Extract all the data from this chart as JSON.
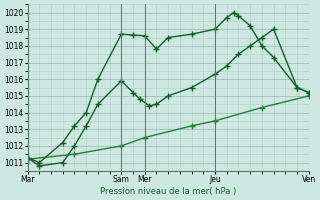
{
  "xlabel": "Pression niveau de la mer( hPa )",
  "background_color": "#cce8e0",
  "grid_color": "#b0cec8",
  "grid_color_major": "#99b8b0",
  "line_color_dark": "#1a5c30",
  "line_color_mid": "#2d7a40",
  "ylim": [
    1010.5,
    1020.5
  ],
  "yticks": [
    1011,
    1012,
    1013,
    1014,
    1015,
    1016,
    1017,
    1018,
    1019,
    1020
  ],
  "xtick_labels": [
    "Mar",
    "",
    "Sam",
    "Mer",
    "",
    "Jeu",
    "",
    "Ven"
  ],
  "xtick_positions": [
    0,
    2,
    4,
    5,
    7,
    8,
    10,
    12
  ],
  "day_lines": [
    0,
    4,
    5,
    8,
    12
  ],
  "line1_x": [
    0,
    0.5,
    1.5,
    2.0,
    2.5,
    3.0,
    4.0,
    4.5,
    4.8,
    5.2,
    5.5,
    6.0,
    7.0,
    8.0,
    8.5,
    9.0,
    9.5,
    10.0,
    10.5,
    11.5,
    12.0
  ],
  "line1_y": [
    1011.3,
    1010.8,
    1011.0,
    1012.0,
    1013.2,
    1014.5,
    1015.9,
    1015.2,
    1014.8,
    1014.4,
    1014.5,
    1015.0,
    1015.5,
    1016.3,
    1016.8,
    1017.5,
    1018.0,
    1018.5,
    1019.0,
    1015.5,
    1015.2
  ],
  "line2_x": [
    0,
    0.5,
    1.5,
    2.0,
    2.5,
    3.0,
    4.0,
    4.5,
    5.0,
    5.5,
    6.0,
    7.0,
    8.0,
    8.5,
    8.8,
    9.0,
    9.5,
    10.0,
    10.5,
    11.5,
    12.0
  ],
  "line2_y": [
    1011.3,
    1011.0,
    1012.2,
    1013.2,
    1014.0,
    1016.0,
    1018.7,
    1018.65,
    1018.6,
    1017.8,
    1018.5,
    1018.7,
    1019.0,
    1019.7,
    1020.0,
    1019.8,
    1019.2,
    1018.0,
    1017.3,
    1015.5,
    1015.2
  ],
  "line3_x": [
    0,
    2,
    4,
    5,
    7,
    8,
    10,
    12
  ],
  "line3_y": [
    1011.2,
    1011.5,
    1012.0,
    1012.5,
    1013.2,
    1013.5,
    1014.3,
    1015.0
  ],
  "marker_size": 4,
  "linewidth": 1.0
}
